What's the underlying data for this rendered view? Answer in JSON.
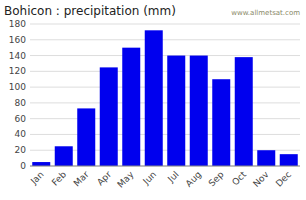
{
  "chart_data": {
    "type": "bar",
    "title": "Bohicon : precipitation (mm)",
    "categories": [
      "Jan",
      "Feb",
      "Mar",
      "Apr",
      "May",
      "Jun",
      "Jul",
      "Aug",
      "Sep",
      "Oct",
      "Nov",
      "Dec"
    ],
    "values": [
      5,
      25,
      73,
      125,
      150,
      172,
      140,
      140,
      110,
      138,
      20,
      15
    ],
    "color": "#0000ee",
    "ylim": [
      0,
      180
    ],
    "yticks": [
      0,
      20,
      40,
      60,
      80,
      100,
      120,
      140,
      160,
      180
    ],
    "grid": true,
    "annotations": [
      "www.allmetsat.com"
    ]
  }
}
